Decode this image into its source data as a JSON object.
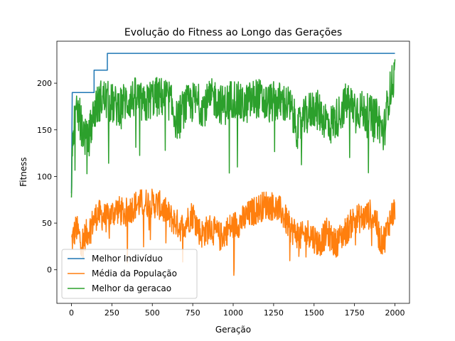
{
  "chart_data": {
    "type": "line",
    "title": "Evolução do Fitness ao Longo das Gerações",
    "xlabel": "Geração",
    "ylabel": "Fitness",
    "xlim": [
      -90,
      2090
    ],
    "ylim": [
      -36,
      245
    ],
    "xticks": [
      0,
      250,
      500,
      750,
      1000,
      1250,
      1500,
      1750,
      2000
    ],
    "yticks": [
      0,
      50,
      100,
      150,
      200
    ],
    "grid": false,
    "legend_position": "lower-left",
    "series": [
      {
        "name": "Melhor Indivíduo",
        "color": "#1f77b4",
        "kind": "step",
        "points": [
          [
            0,
            82
          ],
          [
            5,
            190
          ],
          [
            140,
            190
          ],
          [
            140,
            214
          ],
          [
            222,
            214
          ],
          [
            222,
            232
          ],
          [
            2000,
            232
          ]
        ]
      },
      {
        "name": "Média da População",
        "color": "#ff7f0e",
        "kind": "noisy",
        "trend": [
          [
            0,
            30
          ],
          [
            30,
            45
          ],
          [
            60,
            30
          ],
          [
            100,
            40
          ],
          [
            160,
            60
          ],
          [
            220,
            55
          ],
          [
            280,
            65
          ],
          [
            330,
            60
          ],
          [
            400,
            70
          ],
          [
            470,
            72
          ],
          [
            540,
            70
          ],
          [
            600,
            58
          ],
          [
            680,
            45
          ],
          [
            750,
            60
          ],
          [
            800,
            38
          ],
          [
            860,
            45
          ],
          [
            920,
            35
          ],
          [
            980,
            45
          ],
          [
            1050,
            52
          ],
          [
            1120,
            62
          ],
          [
            1200,
            70
          ],
          [
            1250,
            68
          ],
          [
            1300,
            62
          ],
          [
            1350,
            45
          ],
          [
            1420,
            35
          ],
          [
            1470,
            40
          ],
          [
            1530,
            28
          ],
          [
            1580,
            40
          ],
          [
            1630,
            28
          ],
          [
            1700,
            42
          ],
          [
            1750,
            55
          ],
          [
            1800,
            55
          ],
          [
            1850,
            60
          ],
          [
            1880,
            55
          ],
          [
            1910,
            30
          ],
          [
            1940,
            35
          ],
          [
            1970,
            55
          ],
          [
            2000,
            65
          ]
        ],
        "amplitude": 16
      },
      {
        "name": "Melhor da geracao",
        "color": "#2ca02c",
        "kind": "noisy",
        "trend": [
          [
            0,
            82
          ],
          [
            10,
            150
          ],
          [
            40,
            170
          ],
          [
            70,
            150
          ],
          [
            100,
            135
          ],
          [
            140,
            170
          ],
          [
            190,
            185
          ],
          [
            230,
            180
          ],
          [
            280,
            175
          ],
          [
            330,
            180
          ],
          [
            400,
            185
          ],
          [
            450,
            175
          ],
          [
            500,
            185
          ],
          [
            560,
            185
          ],
          [
            600,
            185
          ],
          [
            650,
            160
          ],
          [
            700,
            175
          ],
          [
            760,
            180
          ],
          [
            820,
            175
          ],
          [
            880,
            185
          ],
          [
            940,
            175
          ],
          [
            1000,
            185
          ],
          [
            1060,
            175
          ],
          [
            1100,
            180
          ],
          [
            1150,
            185
          ],
          [
            1200,
            178
          ],
          [
            1250,
            180
          ],
          [
            1300,
            180
          ],
          [
            1350,
            175
          ],
          [
            1400,
            150
          ],
          [
            1450,
            165
          ],
          [
            1500,
            175
          ],
          [
            1550,
            165
          ],
          [
            1600,
            155
          ],
          [
            1650,
            165
          ],
          [
            1700,
            180
          ],
          [
            1750,
            175
          ],
          [
            1800,
            170
          ],
          [
            1850,
            165
          ],
          [
            1900,
            160
          ],
          [
            1930,
            145
          ],
          [
            1960,
            185
          ],
          [
            2000,
            210
          ]
        ],
        "amplitude": 22
      }
    ]
  }
}
